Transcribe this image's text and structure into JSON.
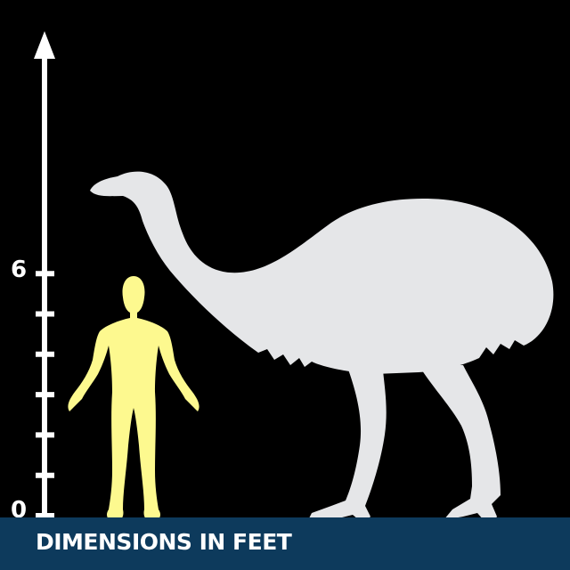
{
  "footer": {
    "label": "DIMENSIONS IN FEET",
    "band_color": "#0d3a5c"
  },
  "scale": {
    "unit": "feet",
    "tick_labels": [
      "0",
      "6"
    ],
    "tick_values": [
      0,
      1,
      2,
      3,
      4,
      5,
      6
    ],
    "has_arrow_top": true
  },
  "figures": [
    {
      "name": "human",
      "height_ft": 6,
      "color": "#fdf98f"
    },
    {
      "name": "moa",
      "height_ft": 8.5,
      "color": "#e5e6e8"
    }
  ],
  "colors": {
    "background": "#000000",
    "scale": "#ffffff"
  }
}
